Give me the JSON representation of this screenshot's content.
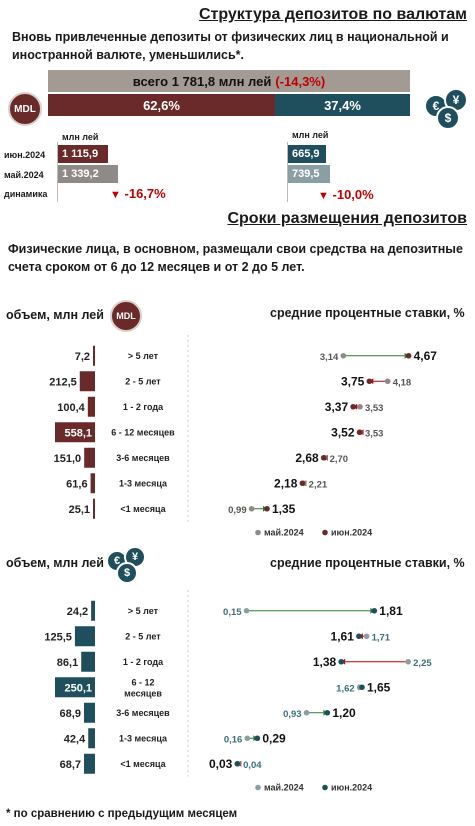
{
  "title1": "Структура депозитов по валютам",
  "lead1": "Вновь привлеченные депозиты от физических лиц в национальной и иностранной валюте, уменьшились*.",
  "total": {
    "text": "всего 1 781,8 млн лей",
    "change": "(-14,3%)"
  },
  "split": {
    "mdl_share": "62,6%",
    "fx_share": "37,4%",
    "mdl_fraction": 0.626
  },
  "icons": {
    "mdl_label": "MDL",
    "fx_symbols": [
      "€",
      "¥",
      "$"
    ]
  },
  "compare": {
    "unit_left": "млн лей",
    "unit_right": "млн лей",
    "rows": [
      {
        "label": "июн.2024",
        "mdl": "1 115,9",
        "fx": "665,9"
      },
      {
        "label": "май.2024",
        "mdl": "1 339,2",
        "fx": "739,5"
      }
    ],
    "dyn_label": "динамика",
    "mdl_change": "-16,7%",
    "fx_change": "-10,0%"
  },
  "title2": "Сроки размещения депозитов",
  "lead2": "Физические лица, в основном, размещали свои средства на депозитные счета сроком от 6 до 12 месяцев и от 2 до 5 лет.",
  "colors": {
    "mdl": "#6b2a2a",
    "mdl_light": "#8f8a86",
    "fx": "#1f4f5c",
    "fx_light": "#8a9fa4",
    "gray": "#a39a93",
    "red": "#c00000"
  },
  "chart_data": [
    {
      "type": "bar",
      "currency": "MDL",
      "title": "объем, млн лей",
      "categories": [
        "> 5 лет",
        "2 - 5 лет",
        "1 - 2 года",
        "6 - 12 месяцев",
        "3-6 месяцев",
        "1-3 месяца",
        "<1 месяца"
      ],
      "values": [
        7.2,
        212.5,
        100.4,
        558.1,
        151.0,
        61.6,
        25.1
      ],
      "value_labels": [
        "7,2",
        "212,5",
        "100,4",
        "558,1",
        "151,0",
        "61,6",
        "25,1"
      ]
    },
    {
      "type": "scatter",
      "currency": "MDL",
      "title": "средние процентные ставки, %",
      "categories": [
        "> 5 лет",
        "2 - 5 лет",
        "1 - 2 года",
        "6 - 12 месяцев",
        "3-6 месяцев",
        "1-3 месяца",
        "<1 месяца"
      ],
      "series": [
        {
          "name": "май.2024",
          "values": [
            3.14,
            4.18,
            3.53,
            3.53,
            2.7,
            2.21,
            0.99
          ],
          "labels": [
            "3,14",
            "4,18",
            "3,53",
            "3,53",
            "2,70",
            "2,21",
            "0,99"
          ]
        },
        {
          "name": "июн.2024",
          "values": [
            4.67,
            3.75,
            3.37,
            3.52,
            2.68,
            2.18,
            1.35
          ],
          "labels": [
            "4,67",
            "3,75",
            "3,37",
            "3,52",
            "2,68",
            "2,18",
            "1,35"
          ]
        }
      ]
    },
    {
      "type": "bar",
      "currency": "FX",
      "title": "объем, млн лей",
      "categories": [
        "> 5 лет",
        "2 - 5 лет",
        "1 - 2 года",
        "6 - 12 месяцев",
        "3-6 месяцев",
        "1-3 месяца",
        "<1 месяца"
      ],
      "values": [
        24.2,
        125.5,
        86.1,
        250.1,
        68.9,
        42.4,
        68.7
      ],
      "value_labels": [
        "24,2",
        "125,5",
        "86,1",
        "250,1",
        "68,9",
        "42,4",
        "68,7"
      ]
    },
    {
      "type": "scatter",
      "currency": "FX",
      "title": "средние процентные ставки, %",
      "categories": [
        "> 5 лет",
        "2 - 5 лет",
        "1 - 2 года",
        "6 - 12 месяцев",
        "3-6 месяцев",
        "1-3 месяца",
        "<1 месяца"
      ],
      "series": [
        {
          "name": "май.2024",
          "values": [
            0.15,
            1.71,
            2.25,
            1.62,
            0.93,
            0.16,
            0.04
          ],
          "labels": [
            "0,15",
            "1,71",
            "2,25",
            "1,62",
            "0,93",
            "0,16",
            "0,04"
          ]
        },
        {
          "name": "июн.2024",
          "values": [
            1.81,
            1.61,
            1.38,
            1.65,
            1.2,
            0.29,
            0.03
          ],
          "labels": [
            "1,81",
            "1,61",
            "1,38",
            "1,65",
            "1,20",
            "0,29",
            "0,03"
          ]
        }
      ]
    }
  ],
  "footnote": "* по сравнению с предыдущим месяцем"
}
